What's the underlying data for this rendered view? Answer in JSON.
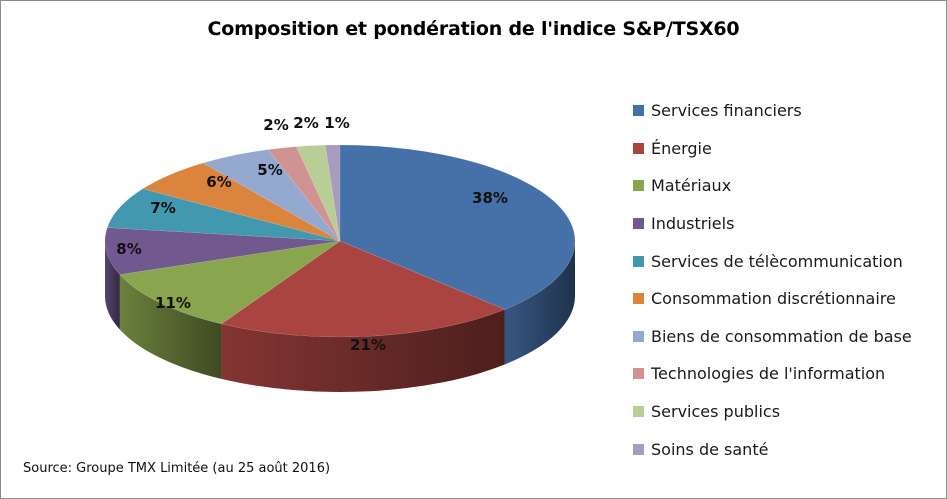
{
  "title": "Composition et pondération de l'indice S&P/TSX60",
  "source": "Source: Groupe TMX Limitée (au 25 août 2016)",
  "legend": [
    {
      "label": "Services financiers",
      "color": "#4570A8"
    },
    {
      "label": "Énergie",
      "color": "#A94441"
    },
    {
      "label": "Matériaux",
      "color": "#89A54E"
    },
    {
      "label": "Industriels",
      "color": "#71588F"
    },
    {
      "label": "Services de télècommunication",
      "color": "#4298AF"
    },
    {
      "label": "Consommation discrétionnaire",
      "color": "#DB843D"
    },
    {
      "label": "Biens de consommation de base",
      "color": "#93A9CF"
    },
    {
      "label": "Technologies de l'information",
      "color": "#D19392"
    },
    {
      "label": "Services publics",
      "color": "#B9CD96"
    },
    {
      "label": "Soins de santé",
      "color": "#A99BBD"
    }
  ],
  "chart_data": {
    "type": "pie",
    "title": "Composition et pondération de l'indice S&P/TSX60",
    "categories": [
      "Services financiers",
      "Énergie",
      "Matériaux",
      "Industriels",
      "Services de télècommunication",
      "Consommation discrétionnaire",
      "Biens de consommation de base",
      "Technologies de l'information",
      "Services publics",
      "Soins de santé"
    ],
    "values": [
      38,
      21,
      11,
      8,
      7,
      6,
      5,
      2,
      2,
      1
    ],
    "labels": [
      "38%",
      "21%",
      "11%",
      "8%",
      "7%",
      "6%",
      "5%",
      "2%",
      "2%",
      "1%"
    ],
    "colors": [
      "#4570A8",
      "#A94441",
      "#89A54E",
      "#71588F",
      "#4298AF",
      "#DB843D",
      "#93A9CF",
      "#D19392",
      "#B9CD96",
      "#A99BBD"
    ],
    "legend_position": "right",
    "style": "3d-pie",
    "source": "Source: Groupe TMX Limitée (au 25 août 2016)"
  }
}
